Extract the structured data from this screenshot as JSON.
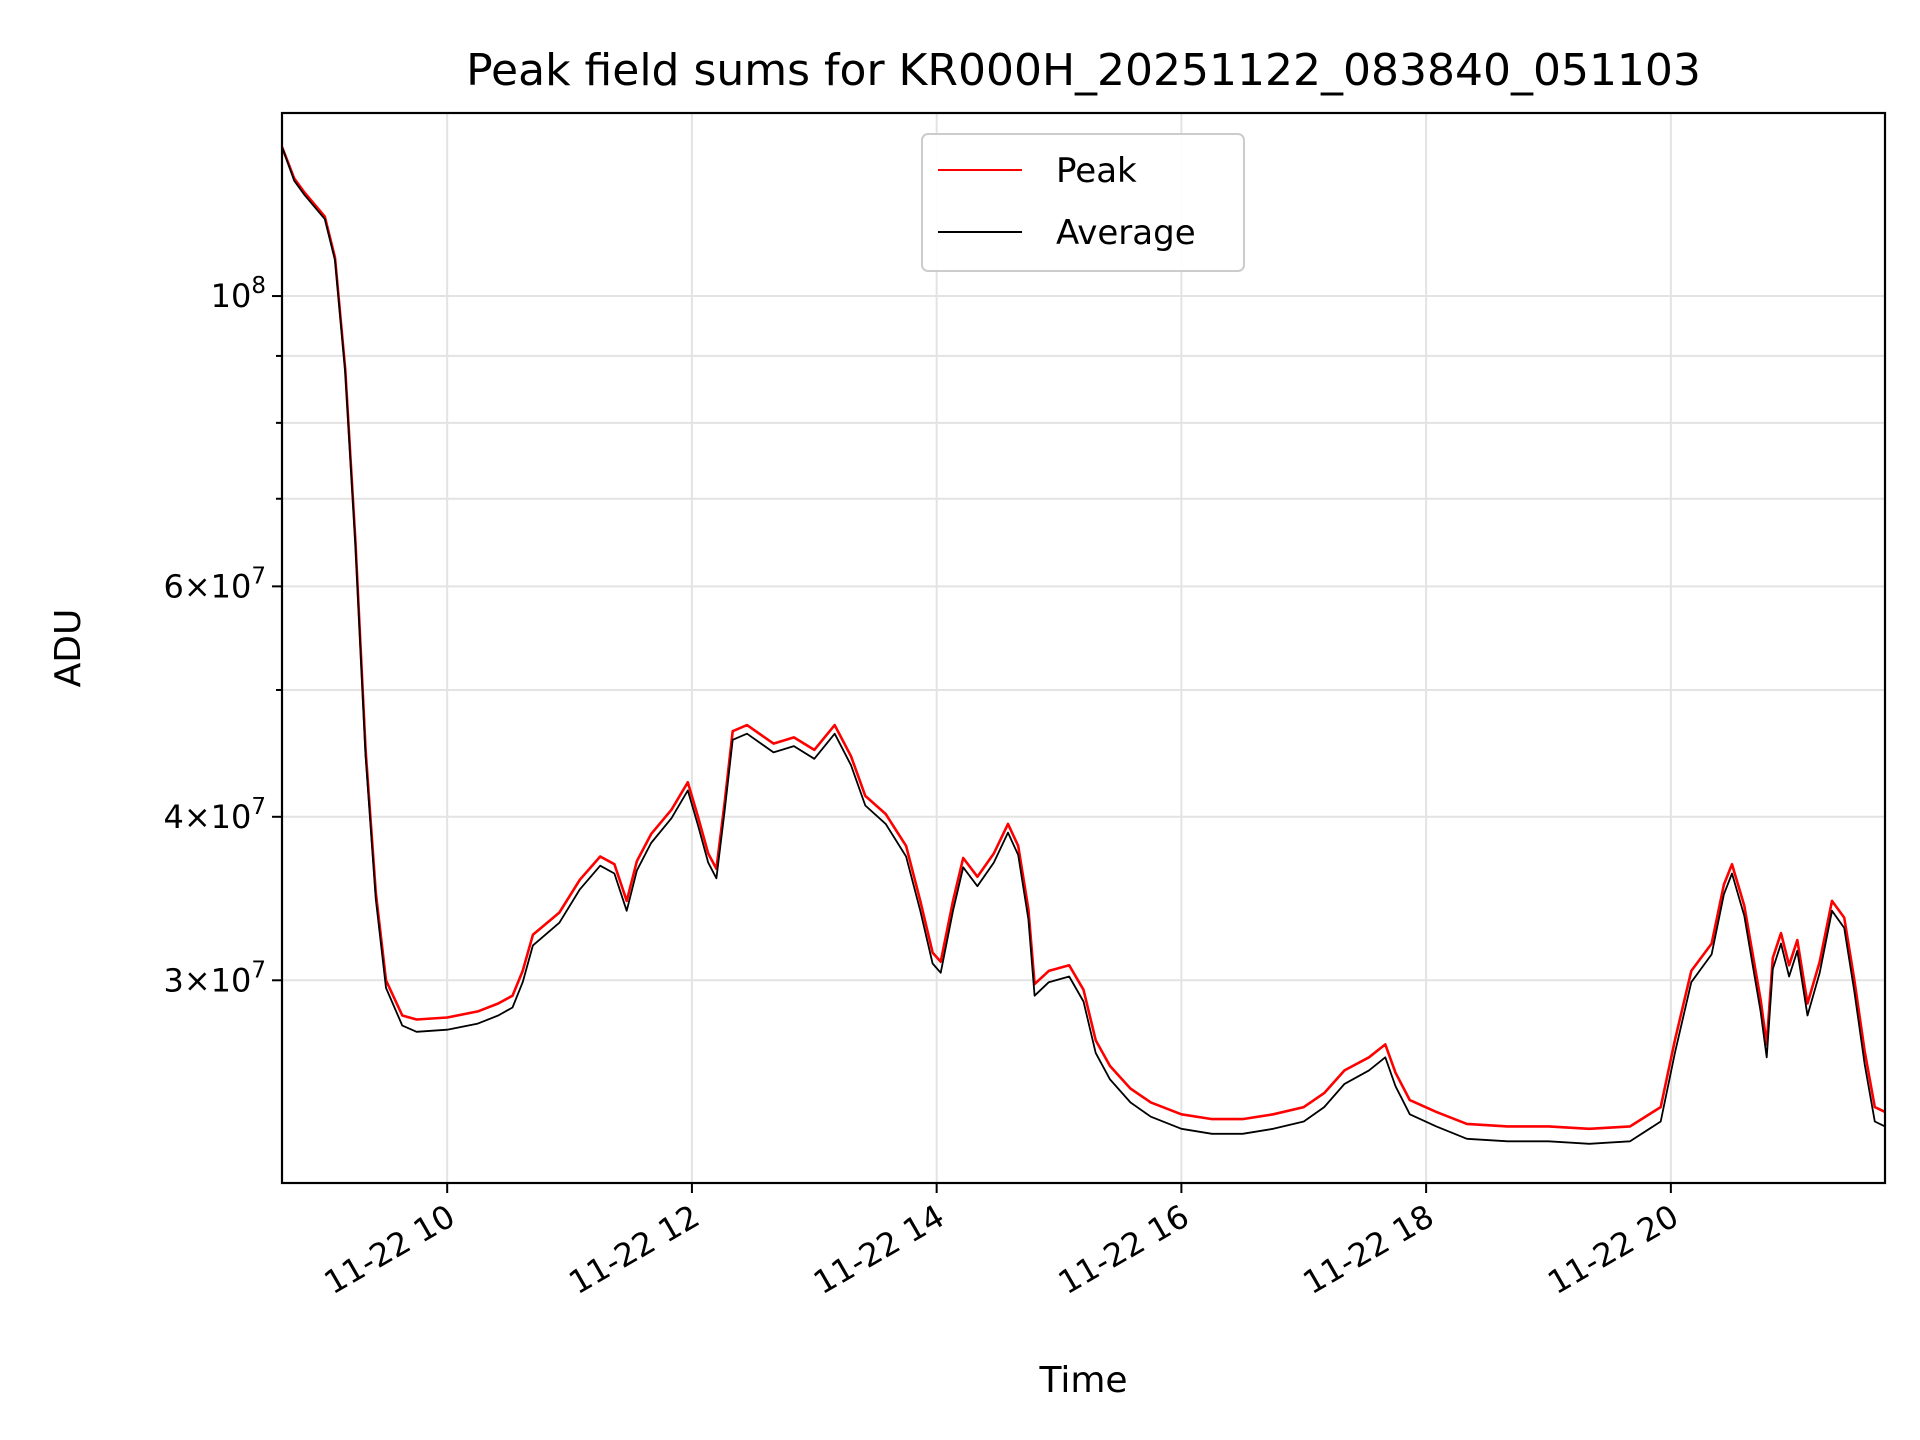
{
  "chart_data": {
    "type": "line",
    "title": "Peak field sums for KR000H_20251122_083840_051103",
    "xlabel": "Time",
    "ylabel": "ADU",
    "y_scale": "log",
    "grid": true,
    "legend_position": "upper center",
    "xlim": [
      "2025-11-22 08:39",
      "2025-11-22 21:45"
    ],
    "ylim": [
      21000000,
      138000000
    ],
    "x_ticks": [
      {
        "time": "2025-11-22 10:00",
        "label": "11-22 10"
      },
      {
        "time": "2025-11-22 12:00",
        "label": "11-22 12"
      },
      {
        "time": "2025-11-22 14:00",
        "label": "11-22 14"
      },
      {
        "time": "2025-11-22 16:00",
        "label": "11-22 16"
      },
      {
        "time": "2025-11-22 18:00",
        "label": "11-22 18"
      },
      {
        "time": "2025-11-22 20:00",
        "label": "11-22 20"
      }
    ],
    "y_major_ticks": [
      {
        "value": 100000000,
        "mantissa": "",
        "exponent": "8",
        "base": "10"
      },
      {
        "value": 60000000,
        "mantissa": "6",
        "exponent": "7",
        "base": "10"
      },
      {
        "value": 40000000,
        "mantissa": "4",
        "exponent": "7",
        "base": "10"
      },
      {
        "value": 30000000,
        "mantissa": "3",
        "exponent": "7",
        "base": "10"
      }
    ],
    "y_minor_ticks": [
      50000000,
      70000000,
      80000000,
      90000000
    ],
    "colors": {
      "peak": "#ff0000",
      "average": "#000000"
    },
    "series": [
      {
        "name": "Peak",
        "color": "#ff0000",
        "points": [
          [
            "2025-11-22 08:39",
            130000000
          ],
          [
            "2025-11-22 08:45",
            123000000
          ],
          [
            "2025-11-22 08:50",
            120000000
          ],
          [
            "2025-11-22 08:58",
            116000000
          ],
          [
            "2025-11-22 09:00",
            115000000
          ],
          [
            "2025-11-22 09:05",
            107000000
          ],
          [
            "2025-11-22 09:10",
            88000000
          ],
          [
            "2025-11-22 09:15",
            65000000
          ],
          [
            "2025-11-22 09:20",
            45000000
          ],
          [
            "2025-11-22 09:25",
            35000000
          ],
          [
            "2025-11-22 09:30",
            30000000
          ],
          [
            "2025-11-22 09:38",
            28200000
          ],
          [
            "2025-11-22 09:45",
            28000000
          ],
          [
            "2025-11-22 10:00",
            28100000
          ],
          [
            "2025-11-22 10:15",
            28400000
          ],
          [
            "2025-11-22 10:25",
            28800000
          ],
          [
            "2025-11-22 10:32",
            29200000
          ],
          [
            "2025-11-22 10:37",
            30500000
          ],
          [
            "2025-11-22 10:42",
            32500000
          ],
          [
            "2025-11-22 10:55",
            33800000
          ],
          [
            "2025-11-22 11:05",
            35800000
          ],
          [
            "2025-11-22 11:15",
            37300000
          ],
          [
            "2025-11-22 11:22",
            36800000
          ],
          [
            "2025-11-22 11:28",
            34500000
          ],
          [
            "2025-11-22 11:33",
            37000000
          ],
          [
            "2025-11-22 11:40",
            38800000
          ],
          [
            "2025-11-22 11:50",
            40500000
          ],
          [
            "2025-11-22 11:58",
            42500000
          ],
          [
            "2025-11-22 12:03",
            40000000
          ],
          [
            "2025-11-22 12:08",
            37500000
          ],
          [
            "2025-11-22 12:12",
            36500000
          ],
          [
            "2025-11-22 12:16",
            41000000
          ],
          [
            "2025-11-22 12:20",
            46500000
          ],
          [
            "2025-11-22 12:27",
            47000000
          ],
          [
            "2025-11-22 12:40",
            45500000
          ],
          [
            "2025-11-22 12:50",
            46000000
          ],
          [
            "2025-11-22 13:00",
            45000000
          ],
          [
            "2025-11-22 13:10",
            47000000
          ],
          [
            "2025-11-22 13:18",
            44500000
          ],
          [
            "2025-11-22 13:25",
            41500000
          ],
          [
            "2025-11-22 13:35",
            40200000
          ],
          [
            "2025-11-22 13:45",
            38000000
          ],
          [
            "2025-11-22 13:52",
            34500000
          ],
          [
            "2025-11-22 13:58",
            31500000
          ],
          [
            "2025-11-22 14:02",
            31000000
          ],
          [
            "2025-11-22 14:08",
            34500000
          ],
          [
            "2025-11-22 14:13",
            37200000
          ],
          [
            "2025-11-22 14:20",
            36000000
          ],
          [
            "2025-11-22 14:28",
            37500000
          ],
          [
            "2025-11-22 14:35",
            39500000
          ],
          [
            "2025-11-22 14:40",
            38000000
          ],
          [
            "2025-11-22 14:45",
            34000000
          ],
          [
            "2025-11-22 14:48",
            29800000
          ],
          [
            "2025-11-22 14:55",
            30500000
          ],
          [
            "2025-11-22 15:05",
            30800000
          ],
          [
            "2025-11-22 15:12",
            29500000
          ],
          [
            "2025-11-22 15:18",
            27000000
          ],
          [
            "2025-11-22 15:25",
            25800000
          ],
          [
            "2025-11-22 15:35",
            24800000
          ],
          [
            "2025-11-22 15:45",
            24200000
          ],
          [
            "2025-11-22 16:00",
            23700000
          ],
          [
            "2025-11-22 16:15",
            23500000
          ],
          [
            "2025-11-22 16:30",
            23500000
          ],
          [
            "2025-11-22 16:45",
            23700000
          ],
          [
            "2025-11-22 17:00",
            24000000
          ],
          [
            "2025-11-22 17:10",
            24600000
          ],
          [
            "2025-11-22 17:20",
            25600000
          ],
          [
            "2025-11-22 17:32",
            26200000
          ],
          [
            "2025-11-22 17:40",
            26800000
          ],
          [
            "2025-11-22 17:45",
            25500000
          ],
          [
            "2025-11-22 17:52",
            24300000
          ],
          [
            "2025-11-22 18:05",
            23800000
          ],
          [
            "2025-11-22 18:20",
            23300000
          ],
          [
            "2025-11-22 18:40",
            23200000
          ],
          [
            "2025-11-22 19:00",
            23200000
          ],
          [
            "2025-11-22 19:20",
            23100000
          ],
          [
            "2025-11-22 19:40",
            23200000
          ],
          [
            "2025-11-22 19:55",
            24000000
          ],
          [
            "2025-11-22 20:02",
            27000000
          ],
          [
            "2025-11-22 20:10",
            30500000
          ],
          [
            "2025-11-22 20:20",
            32000000
          ],
          [
            "2025-11-22 20:26",
            35500000
          ],
          [
            "2025-11-22 20:30",
            36800000
          ],
          [
            "2025-11-22 20:36",
            34200000
          ],
          [
            "2025-11-22 20:40",
            31500000
          ],
          [
            "2025-11-22 20:44",
            29000000
          ],
          [
            "2025-11-22 20:47",
            26800000
          ],
          [
            "2025-11-22 20:50",
            31200000
          ],
          [
            "2025-11-22 20:54",
            32600000
          ],
          [
            "2025-11-22 20:58",
            30800000
          ],
          [
            "2025-11-22 21:02",
            32200000
          ],
          [
            "2025-11-22 21:07",
            28800000
          ],
          [
            "2025-11-22 21:13",
            31000000
          ],
          [
            "2025-11-22 21:19",
            34500000
          ],
          [
            "2025-11-22 21:25",
            33500000
          ],
          [
            "2025-11-22 21:30",
            30000000
          ],
          [
            "2025-11-22 21:35",
            26500000
          ],
          [
            "2025-11-22 21:40",
            24000000
          ],
          [
            "2025-11-22 21:45",
            23800000
          ]
        ]
      },
      {
        "name": "Average",
        "color": "#000000",
        "points": [
          [
            "2025-11-22 08:39",
            130000000
          ],
          [
            "2025-11-22 08:45",
            122500000
          ],
          [
            "2025-11-22 08:50",
            119500000
          ],
          [
            "2025-11-22 08:58",
            115500000
          ],
          [
            "2025-11-22 09:00",
            114500000
          ],
          [
            "2025-11-22 09:05",
            106500000
          ],
          [
            "2025-11-22 09:10",
            87500000
          ],
          [
            "2025-11-22 09:15",
            64500000
          ],
          [
            "2025-11-22 09:20",
            44500000
          ],
          [
            "2025-11-22 09:25",
            34600000
          ],
          [
            "2025-11-22 09:30",
            29600000
          ],
          [
            "2025-11-22 09:38",
            27700000
          ],
          [
            "2025-11-22 09:45",
            27400000
          ],
          [
            "2025-11-22 10:00",
            27500000
          ],
          [
            "2025-11-22 10:15",
            27800000
          ],
          [
            "2025-11-22 10:25",
            28200000
          ],
          [
            "2025-11-22 10:32",
            28600000
          ],
          [
            "2025-11-22 10:37",
            29900000
          ],
          [
            "2025-11-22 10:42",
            31900000
          ],
          [
            "2025-11-22 10:55",
            33200000
          ],
          [
            "2025-11-22 11:05",
            35200000
          ],
          [
            "2025-11-22 11:15",
            36700000
          ],
          [
            "2025-11-22 11:22",
            36200000
          ],
          [
            "2025-11-22 11:28",
            33900000
          ],
          [
            "2025-11-22 11:33",
            36400000
          ],
          [
            "2025-11-22 11:40",
            38200000
          ],
          [
            "2025-11-22 11:50",
            39900000
          ],
          [
            "2025-11-22 11:58",
            41900000
          ],
          [
            "2025-11-22 12:03",
            39400000
          ],
          [
            "2025-11-22 12:08",
            36900000
          ],
          [
            "2025-11-22 12:12",
            35900000
          ],
          [
            "2025-11-22 12:16",
            40400000
          ],
          [
            "2025-11-22 12:20",
            45800000
          ],
          [
            "2025-11-22 12:27",
            46300000
          ],
          [
            "2025-11-22 12:40",
            44800000
          ],
          [
            "2025-11-22 12:50",
            45300000
          ],
          [
            "2025-11-22 13:00",
            44300000
          ],
          [
            "2025-11-22 13:10",
            46300000
          ],
          [
            "2025-11-22 13:18",
            43800000
          ],
          [
            "2025-11-22 13:25",
            40800000
          ],
          [
            "2025-11-22 13:35",
            39500000
          ],
          [
            "2025-11-22 13:45",
            37300000
          ],
          [
            "2025-11-22 13:52",
            33900000
          ],
          [
            "2025-11-22 13:58",
            30900000
          ],
          [
            "2025-11-22 14:02",
            30400000
          ],
          [
            "2025-11-22 14:08",
            33900000
          ],
          [
            "2025-11-22 14:13",
            36600000
          ],
          [
            "2025-11-22 14:20",
            35400000
          ],
          [
            "2025-11-22 14:28",
            36900000
          ],
          [
            "2025-11-22 14:35",
            38900000
          ],
          [
            "2025-11-22 14:40",
            37400000
          ],
          [
            "2025-11-22 14:45",
            33400000
          ],
          [
            "2025-11-22 14:48",
            29200000
          ],
          [
            "2025-11-22 14:55",
            29900000
          ],
          [
            "2025-11-22 15:05",
            30200000
          ],
          [
            "2025-11-22 15:12",
            28900000
          ],
          [
            "2025-11-22 15:18",
            26400000
          ],
          [
            "2025-11-22 15:25",
            25200000
          ],
          [
            "2025-11-22 15:35",
            24200000
          ],
          [
            "2025-11-22 15:45",
            23600000
          ],
          [
            "2025-11-22 16:00",
            23100000
          ],
          [
            "2025-11-22 16:15",
            22900000
          ],
          [
            "2025-11-22 16:30",
            22900000
          ],
          [
            "2025-11-22 16:45",
            23100000
          ],
          [
            "2025-11-22 17:00",
            23400000
          ],
          [
            "2025-11-22 17:10",
            24000000
          ],
          [
            "2025-11-22 17:20",
            25000000
          ],
          [
            "2025-11-22 17:32",
            25600000
          ],
          [
            "2025-11-22 17:40",
            26200000
          ],
          [
            "2025-11-22 17:45",
            24900000
          ],
          [
            "2025-11-22 17:52",
            23700000
          ],
          [
            "2025-11-22 18:05",
            23200000
          ],
          [
            "2025-11-22 18:20",
            22700000
          ],
          [
            "2025-11-22 18:40",
            22600000
          ],
          [
            "2025-11-22 19:00",
            22600000
          ],
          [
            "2025-11-22 19:20",
            22500000
          ],
          [
            "2025-11-22 19:40",
            22600000
          ],
          [
            "2025-11-22 19:55",
            23400000
          ],
          [
            "2025-11-22 20:02",
            26400000
          ],
          [
            "2025-11-22 20:10",
            29900000
          ],
          [
            "2025-11-22 20:20",
            31400000
          ],
          [
            "2025-11-22 20:26",
            34900000
          ],
          [
            "2025-11-22 20:30",
            36200000
          ],
          [
            "2025-11-22 20:36",
            33600000
          ],
          [
            "2025-11-22 20:40",
            30900000
          ],
          [
            "2025-11-22 20:44",
            28400000
          ],
          [
            "2025-11-22 20:47",
            26200000
          ],
          [
            "2025-11-22 20:50",
            30600000
          ],
          [
            "2025-11-22 20:54",
            32000000
          ],
          [
            "2025-11-22 20:58",
            30200000
          ],
          [
            "2025-11-22 21:02",
            31600000
          ],
          [
            "2025-11-22 21:07",
            28200000
          ],
          [
            "2025-11-22 21:13",
            30400000
          ],
          [
            "2025-11-22 21:19",
            33900000
          ],
          [
            "2025-11-22 21:25",
            32900000
          ],
          [
            "2025-11-22 21:30",
            29400000
          ],
          [
            "2025-11-22 21:35",
            25900000
          ],
          [
            "2025-11-22 21:40",
            23400000
          ],
          [
            "2025-11-22 21:45",
            23200000
          ]
        ]
      }
    ]
  }
}
